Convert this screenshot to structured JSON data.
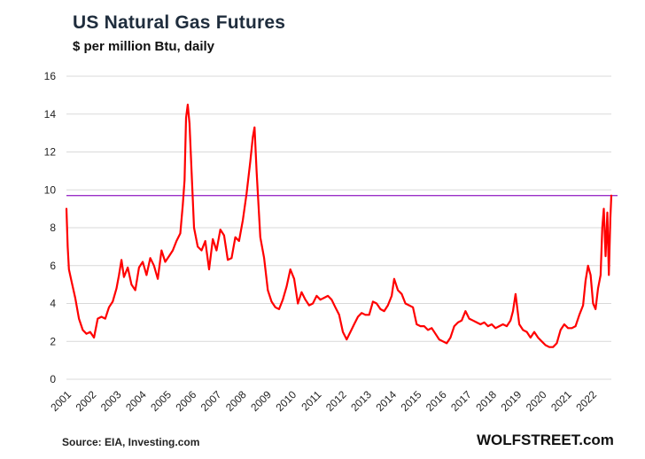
{
  "header": {
    "title": "US Natural Gas Futures",
    "subtitle": "$ per million Btu, daily"
  },
  "footer": {
    "source": "Source: EIA, Investing.com",
    "brand": "WOLFSTREET.com"
  },
  "colors": {
    "series": "#ff0000",
    "reference_line": "#9b30c8",
    "grid": "#d9d9d9"
  },
  "chart_data": {
    "type": "line",
    "title": "US Natural Gas Futures",
    "subtitle": "$ per million Btu, daily",
    "xlabel": "",
    "ylabel": "",
    "ylim": [
      0,
      16
    ],
    "xlim": [
      2001.0,
      2022.78
    ],
    "y_ticks": [
      0,
      2,
      4,
      6,
      8,
      10,
      12,
      14,
      16
    ],
    "x_tick_labels": [
      "2001",
      "2002",
      "2003",
      "2004",
      "2005",
      "2006",
      "2007",
      "2008",
      "2009",
      "2010",
      "2011",
      "2012",
      "2013",
      "2014",
      "2015",
      "2016",
      "2017",
      "2018",
      "2019",
      "2020",
      "2021",
      "2022"
    ],
    "grid": true,
    "reference_line_y": 9.7,
    "series": [
      {
        "x": [
          2001.0,
          2001.05,
          2001.1,
          2001.2,
          2001.35,
          2001.5,
          2001.65,
          2001.8,
          2001.95,
          2002.1,
          2002.25,
          2002.4,
          2002.55,
          2002.7,
          2002.85,
          2003.0,
          2003.1,
          2003.2,
          2003.3,
          2003.45,
          2003.6,
          2003.75,
          2003.9,
          2004.05,
          2004.2,
          2004.35,
          2004.5,
          2004.65,
          2004.8,
          2004.95,
          2005.1,
          2005.25,
          2005.4,
          2005.55,
          2005.65,
          2005.72,
          2005.78,
          2005.85,
          2005.92,
          2006.0,
          2006.1,
          2006.25,
          2006.4,
          2006.55,
          2006.7,
          2006.85,
          2007.0,
          2007.15,
          2007.3,
          2007.45,
          2007.6,
          2007.75,
          2007.9,
          2008.05,
          2008.2,
          2008.35,
          2008.45,
          2008.52,
          2008.6,
          2008.75,
          2008.9,
          2009.05,
          2009.2,
          2009.35,
          2009.5,
          2009.65,
          2009.8,
          2009.95,
          2010.1,
          2010.25,
          2010.4,
          2010.55,
          2010.7,
          2010.85,
          2011.0,
          2011.15,
          2011.3,
          2011.45,
          2011.6,
          2011.75,
          2011.9,
          2012.05,
          2012.2,
          2012.35,
          2012.5,
          2012.65,
          2012.8,
          2012.95,
          2013.1,
          2013.25,
          2013.4,
          2013.55,
          2013.7,
          2013.85,
          2014.0,
          2014.1,
          2014.25,
          2014.4,
          2014.55,
          2014.7,
          2014.85,
          2015.0,
          2015.15,
          2015.3,
          2015.45,
          2015.6,
          2015.75,
          2015.9,
          2016.05,
          2016.2,
          2016.35,
          2016.5,
          2016.65,
          2016.8,
          2016.95,
          2017.1,
          2017.25,
          2017.4,
          2017.55,
          2017.7,
          2017.85,
          2018.0,
          2018.15,
          2018.3,
          2018.45,
          2018.6,
          2018.75,
          2018.85,
          2018.95,
          2019.1,
          2019.25,
          2019.4,
          2019.55,
          2019.7,
          2019.85,
          2020.0,
          2020.15,
          2020.3,
          2020.45,
          2020.6,
          2020.75,
          2020.9,
          2021.05,
          2021.2,
          2021.35,
          2021.5,
          2021.65,
          2021.75,
          2021.85,
          2021.95,
          2022.05,
          2022.15,
          2022.25,
          2022.35,
          2022.42,
          2022.48,
          2022.55,
          2022.62,
          2022.68,
          2022.74,
          2022.78
        ],
        "values": [
          9.0,
          7.0,
          5.8,
          5.2,
          4.3,
          3.2,
          2.6,
          2.4,
          2.5,
          2.2,
          3.2,
          3.3,
          3.2,
          3.8,
          4.1,
          4.8,
          5.5,
          6.3,
          5.4,
          5.9,
          5.0,
          4.7,
          5.9,
          6.2,
          5.5,
          6.4,
          6.0,
          5.3,
          6.8,
          6.2,
          6.5,
          6.8,
          7.3,
          7.7,
          9.2,
          10.5,
          13.8,
          14.5,
          13.5,
          11.0,
          8.0,
          7.0,
          6.8,
          7.3,
          5.8,
          7.4,
          6.8,
          7.9,
          7.6,
          6.3,
          6.4,
          7.5,
          7.3,
          8.4,
          9.8,
          11.5,
          12.8,
          13.3,
          11.0,
          7.5,
          6.4,
          4.7,
          4.1,
          3.8,
          3.7,
          4.2,
          4.9,
          5.8,
          5.3,
          4.0,
          4.6,
          4.2,
          3.9,
          4.0,
          4.4,
          4.2,
          4.3,
          4.4,
          4.2,
          3.8,
          3.4,
          2.5,
          2.1,
          2.5,
          2.9,
          3.3,
          3.5,
          3.4,
          3.4,
          4.1,
          4.0,
          3.7,
          3.6,
          3.9,
          4.4,
          5.3,
          4.7,
          4.5,
          4.0,
          3.9,
          3.8,
          2.9,
          2.8,
          2.8,
          2.6,
          2.7,
          2.4,
          2.1,
          2.0,
          1.9,
          2.2,
          2.8,
          3.0,
          3.1,
          3.6,
          3.2,
          3.1,
          3.0,
          2.9,
          3.0,
          2.8,
          2.9,
          2.7,
          2.8,
          2.9,
          2.8,
          3.1,
          3.6,
          4.5,
          2.9,
          2.6,
          2.5,
          2.2,
          2.5,
          2.2,
          2.0,
          1.8,
          1.7,
          1.7,
          1.9,
          2.6,
          2.9,
          2.7,
          2.7,
          2.8,
          3.4,
          3.9,
          5.2,
          6.0,
          5.5,
          4.0,
          3.7,
          4.8,
          5.5,
          8.0,
          9.0,
          6.5,
          8.8,
          5.5,
          8.5,
          9.7
        ]
      }
    ]
  }
}
